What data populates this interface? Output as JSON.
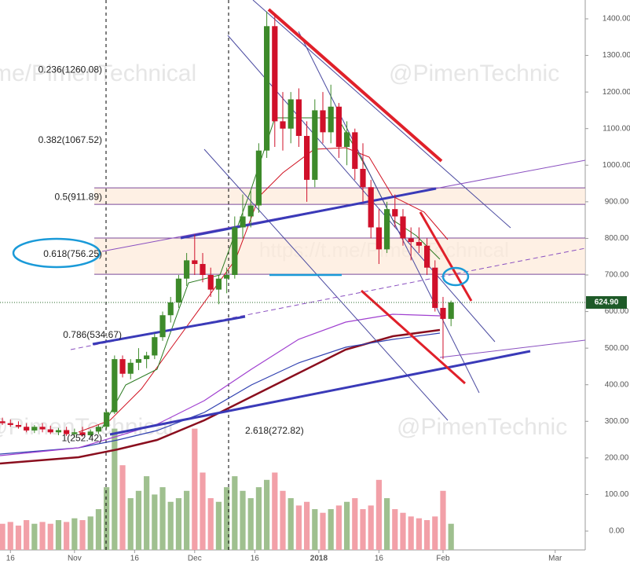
{
  "chart_data": {
    "type": "candlestick",
    "xlim": [
      -18.6,
      127.5
    ],
    "ylim": [
      -51.5,
      1451.5
    ],
    "xticks": [
      {
        "value": -16,
        "label": "16"
      },
      {
        "value": 0,
        "label": "Nov"
      },
      {
        "value": 15,
        "label": "16"
      },
      {
        "value": 30,
        "label": "Dec"
      },
      {
        "value": 45,
        "label": "16"
      },
      {
        "value": 61,
        "label": "2018"
      },
      {
        "value": 76,
        "label": "16"
      },
      {
        "value": 92,
        "label": "Feb"
      },
      {
        "value": 120,
        "label": "Mar"
      }
    ],
    "yticks": [
      {
        "value": 0,
        "label": "0.00"
      },
      {
        "value": 100,
        "label": "100.00"
      },
      {
        "value": 200,
        "label": "200.00"
      },
      {
        "value": 300,
        "label": "300.00"
      },
      {
        "value": 400,
        "label": "400.00"
      },
      {
        "value": 500,
        "label": "500.00"
      },
      {
        "value": 600,
        "label": "600.00"
      },
      {
        "value": 700,
        "label": "700.00"
      },
      {
        "value": 800,
        "label": "800.00"
      },
      {
        "value": 900,
        "label": "900.00"
      },
      {
        "value": 1000,
        "label": "1000.00"
      },
      {
        "value": 1100,
        "label": "1100.00"
      },
      {
        "value": 1200,
        "label": "1200.00"
      },
      {
        "value": 1300,
        "label": "1300.00"
      },
      {
        "value": 1400,
        "label": "1400.00"
      }
    ],
    "x": [
      -18,
      -16,
      -14,
      -12,
      -10,
      -8,
      -6,
      -4,
      -2,
      0,
      2,
      4,
      6,
      8,
      10,
      12,
      14,
      16,
      18,
      20,
      22,
      24,
      26,
      28,
      30,
      32,
      34,
      36,
      38,
      40,
      42,
      44,
      46,
      48,
      50,
      52,
      54,
      56,
      58,
      60,
      62,
      64,
      66,
      68,
      70,
      72,
      74,
      76,
      78,
      80,
      82,
      84,
      86,
      88,
      90,
      92,
      94
    ],
    "open": [
      300,
      295,
      290,
      285,
      275,
      285,
      278,
      270,
      276,
      265,
      270,
      262,
      272,
      285,
      325,
      470,
      430,
      460,
      470,
      480,
      530,
      590,
      625,
      690,
      740,
      730,
      700,
      660,
      690,
      700,
      830,
      860,
      890,
      1040,
      1380,
      1120,
      1100,
      1180,
      1080,
      960,
      1150,
      1090,
      1160,
      1050,
      1090,
      990,
      940,
      830,
      770,
      880,
      860,
      800,
      790,
      780,
      720,
      610,
      580
    ],
    "high": [
      310,
      305,
      300,
      295,
      290,
      295,
      288,
      282,
      285,
      280,
      285,
      278,
      290,
      330,
      480,
      480,
      470,
      500,
      490,
      540,
      600,
      640,
      700,
      760,
      810,
      760,
      720,
      700,
      720,
      860,
      920,
      930,
      1060,
      1420,
      1410,
      1200,
      1200,
      1210,
      1120,
      1180,
      1200,
      1220,
      1170,
      1120,
      1100,
      1060,
      960,
      880,
      900,
      920,
      880,
      830,
      830,
      800,
      740,
      640,
      630
    ],
    "low": [
      290,
      285,
      280,
      270,
      268,
      270,
      265,
      262,
      260,
      255,
      258,
      255,
      265,
      280,
      320,
      420,
      415,
      440,
      445,
      470,
      520,
      570,
      610,
      670,
      700,
      680,
      640,
      620,
      650,
      690,
      800,
      830,
      870,
      1020,
      1050,
      1040,
      1060,
      1050,
      900,
      940,
      1060,
      1060,
      1020,
      1000,
      960,
      900,
      800,
      730,
      760,
      830,
      780,
      740,
      760,
      700,
      600,
      470,
      560
    ],
    "close": [
      295,
      290,
      285,
      275,
      285,
      278,
      270,
      276,
      265,
      270,
      262,
      272,
      285,
      325,
      470,
      430,
      460,
      470,
      480,
      530,
      590,
      625,
      690,
      740,
      730,
      700,
      660,
      690,
      700,
      830,
      860,
      890,
      1040,
      1380,
      1120,
      1100,
      1180,
      1080,
      960,
      1150,
      1090,
      1160,
      1050,
      1090,
      990,
      940,
      830,
      770,
      880,
      860,
      800,
      790,
      780,
      720,
      610,
      580,
      625
    ],
    "volume": [
      20,
      25,
      15,
      30,
      20,
      25,
      20,
      30,
      25,
      35,
      30,
      40,
      60,
      120,
      280,
      180,
      90,
      110,
      150,
      100,
      120,
      80,
      90,
      110,
      280,
      160,
      90,
      80,
      120,
      150,
      110,
      90,
      120,
      140,
      160,
      110,
      90,
      70,
      80,
      60,
      50,
      60,
      70,
      80,
      90,
      60,
      70,
      140,
      90,
      60,
      50,
      40,
      35,
      30,
      40,
      110,
      20
    ],
    "current_price": {
      "value": 624.9,
      "label": "624.90"
    },
    "zones": [
      [
        893,
        938
      ],
      [
        702,
        801
      ]
    ],
    "annotations": [
      {
        "label": "0.236(1260.08)",
        "value": 1260.08
      },
      {
        "label": "0.382(1067.52)",
        "value": 1067.52
      },
      {
        "label": "0.5(911.89)",
        "value": 911.89
      },
      {
        "label": "0.618(756.25)",
        "value": 756.25
      },
      {
        "label": "0.786(534.67)",
        "value": 534.67
      },
      {
        "label": "1(252.42)",
        "value": 252.42
      },
      {
        "label": "2.618(272.82)",
        "value": 272.82
      }
    ],
    "watermarks": [
      "me/PimenTechnical",
      "@PimenTechnic",
      "https://t.me/PimenTechnical",
      "@PimenTechnical",
      "@PimenTechnic"
    ],
    "up_color": "#3d8a2a",
    "down_color": "#d0102a"
  }
}
